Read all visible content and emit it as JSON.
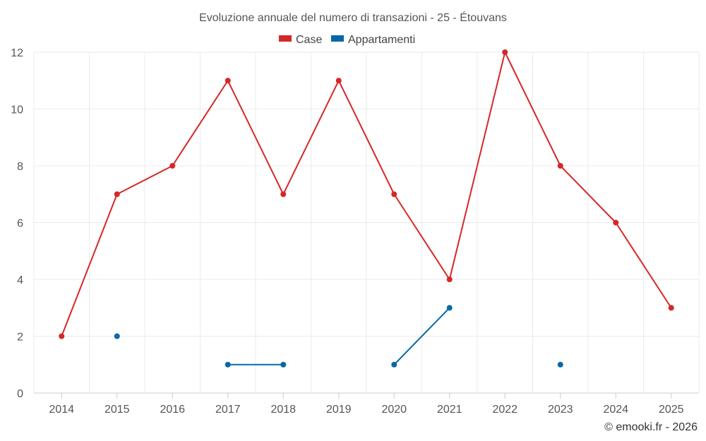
{
  "chart_data": {
    "type": "line",
    "title": "Evoluzione annuale del numero di transazioni - 25 - Étouvans",
    "categories": [
      "2014",
      "2015",
      "2016",
      "2017",
      "2018",
      "2019",
      "2020",
      "2021",
      "2022",
      "2023",
      "2024",
      "2025"
    ],
    "series": [
      {
        "name": "Case",
        "color": "#d62728",
        "values": [
          2,
          7,
          8,
          11,
          7,
          11,
          7,
          4,
          12,
          8,
          6,
          3
        ]
      },
      {
        "name": "Appartamenti",
        "color": "#0868a8",
        "values": [
          null,
          2,
          null,
          1,
          1,
          null,
          1,
          3,
          null,
          1,
          null,
          null
        ]
      }
    ],
    "yticks": [
      "0",
      "2",
      "4",
      "6",
      "8",
      "10",
      "12"
    ],
    "ylim": [
      0,
      12
    ],
    "grid": true,
    "legend_position": "top-center",
    "xlabel": "",
    "ylabel": ""
  },
  "credit": "© emooki.fr - 2026"
}
